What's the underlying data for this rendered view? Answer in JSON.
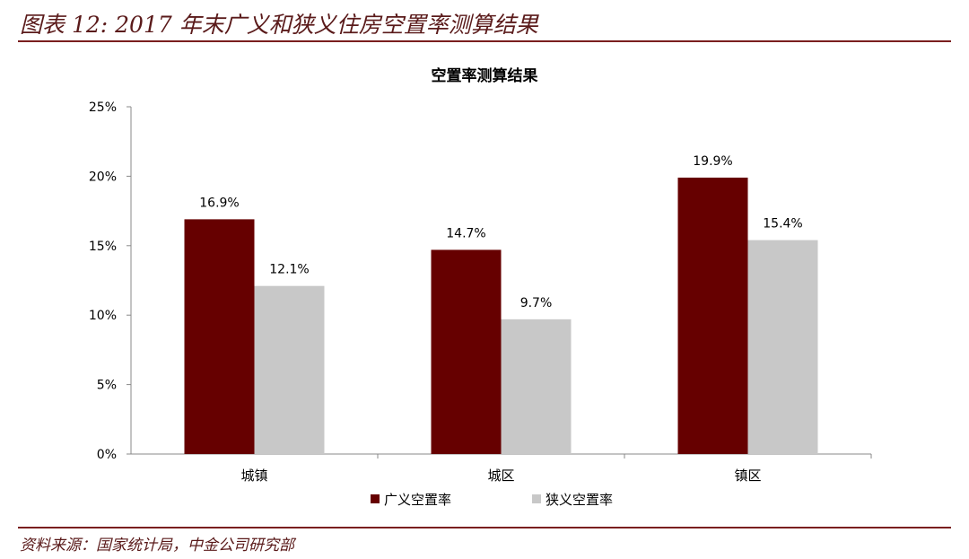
{
  "figure_title": "图表 12: 2017 年末广义和狭义住房空置率测算结果",
  "source": "资料来源：国家统计局，中金公司研究部",
  "chart_data": {
    "type": "bar",
    "title": "空置率测算结果",
    "categories": [
      "城镇",
      "城区",
      "镇区"
    ],
    "series": [
      {
        "name": "广义空置率",
        "values": [
          16.9,
          14.7,
          19.9
        ],
        "labels": [
          "16.9%",
          "14.7%",
          "19.9%"
        ],
        "color": "#660000"
      },
      {
        "name": "狭义空置率",
        "values": [
          12.1,
          9.7,
          15.4
        ],
        "labels": [
          "12.1%",
          "9.7%",
          "15.4%"
        ],
        "color": "#c8c8c8"
      }
    ],
    "ylim": [
      0,
      25
    ],
    "yticks": [
      "0%",
      "5%",
      "10%",
      "15%",
      "20%",
      "25%"
    ],
    "grid": false,
    "legend": "bottom"
  }
}
